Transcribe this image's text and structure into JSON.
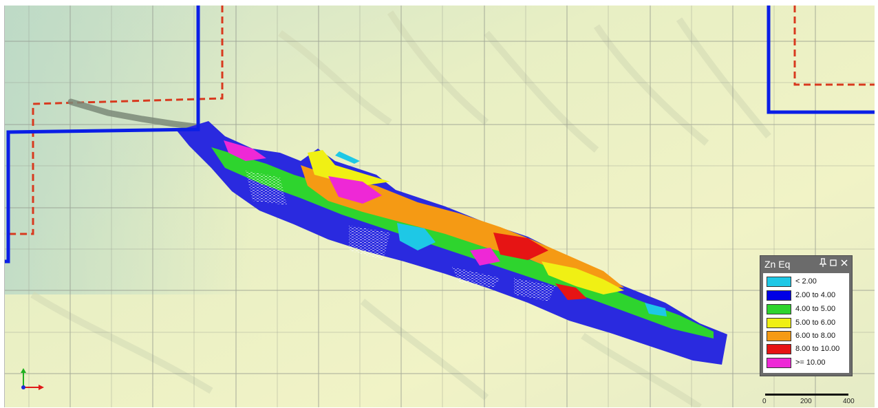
{
  "legend": {
    "title": "Zn Eq",
    "pin_icon": "pin-icon",
    "maximize_icon": "maximize-icon",
    "close_icon": "close-icon",
    "items": [
      {
        "label": "< 2.00",
        "color": "#1ec8e6"
      },
      {
        "label": "2.00 to 4.00",
        "color": "#0000e6"
      },
      {
        "label": "4.00 to 5.00",
        "color": "#2ed42e"
      },
      {
        "label": "5.00 to 6.00",
        "color": "#f0f014"
      },
      {
        "label": "6.00 to 8.00",
        "color": "#f59a14"
      },
      {
        "label": "8.00 to 10.00",
        "color": "#e61414"
      },
      {
        "label": ">= 10.00",
        "color": "#ee28d6"
      }
    ]
  },
  "scale_bar": {
    "ticks": [
      "0",
      "200",
      "400"
    ]
  },
  "colors": {
    "boundary_line": "#0a1ee6",
    "dashed_boundary": "#d8391e",
    "terrain": "#e9f0c8",
    "grid": "#8f948a"
  },
  "icons": {
    "axis": "axis-tripod-icon"
  }
}
